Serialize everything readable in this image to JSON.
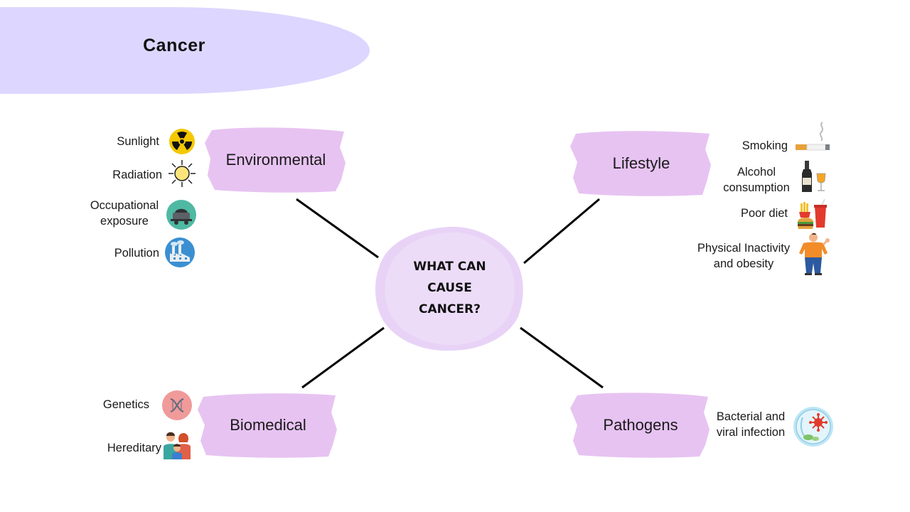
{
  "title": "Cancer",
  "center": {
    "label": "What can cause cancer?"
  },
  "categories": {
    "environmental": {
      "label": "Environmental",
      "items": [
        "Sunlight",
        "Radiation",
        "Occupational exposure",
        "Pollution"
      ],
      "icons": [
        "radiation-hazard-icon",
        "sun-icon",
        "mine-cart-icon",
        "factory-icon"
      ]
    },
    "lifestyle": {
      "label": "Lifestyle",
      "items": [
        "Smoking",
        "Alcohol consumption",
        "Poor diet",
        "Physical Inactivity and obesity"
      ],
      "icons": [
        "cigarette-icon",
        "wine-bottle-icon",
        "fast-food-icon",
        "overweight-person-icon"
      ]
    },
    "biomedical": {
      "label": "Biomedical",
      "items": [
        "Genetics",
        "Hereditary"
      ],
      "icons": [
        "dna-icon",
        "family-icon"
      ]
    },
    "pathogens": {
      "label": "Pathogens",
      "items": [
        "Bacterial and viral infection"
      ],
      "icons": [
        "virus-icon"
      ]
    }
  },
  "colors": {
    "title_pill": "#ddd6ff",
    "blob": "#e3b8f0",
    "center_blob": "#e8d3f7",
    "line": "#000000"
  }
}
